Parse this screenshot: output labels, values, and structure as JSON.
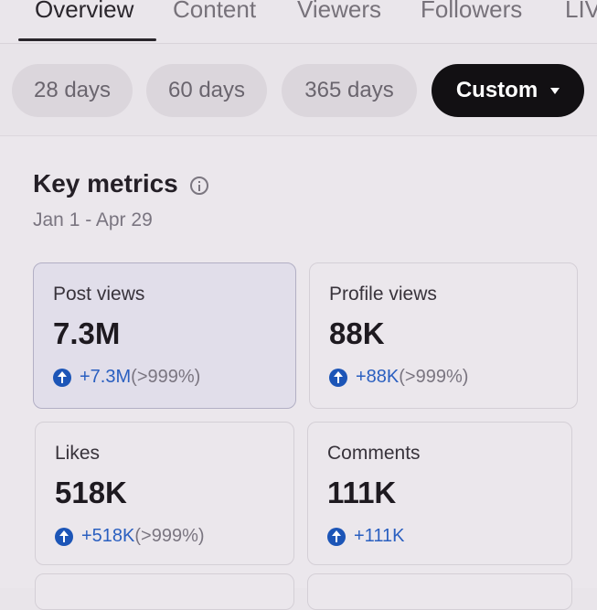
{
  "tabs": [
    {
      "label": "Overview",
      "active": true
    },
    {
      "label": "Content",
      "active": false
    },
    {
      "label": "Viewers",
      "active": false
    },
    {
      "label": "Followers",
      "active": false
    },
    {
      "label": "LIV",
      "active": false
    }
  ],
  "date_ranges": [
    {
      "label": "28 days",
      "selected": false
    },
    {
      "label": "60 days",
      "selected": false
    },
    {
      "label": "365 days",
      "selected": false
    },
    {
      "label": "Custom",
      "selected": true
    }
  ],
  "key_metrics": {
    "title": "Key metrics",
    "date_range": "Jan 1 - Apr 29",
    "cards": [
      {
        "label": "Post views",
        "value": "7.3M",
        "change": "+7.3M",
        "pct": "(>999%)",
        "selected": true
      },
      {
        "label": "Profile views",
        "value": "88K",
        "change": "+88K",
        "pct": "(>999%)",
        "selected": false
      },
      {
        "label": "Likes",
        "value": "518K",
        "change": "+518K",
        "pct": "(>999%)",
        "selected": false
      },
      {
        "label": "Comments",
        "value": "111K",
        "change": "+111K",
        "pct": "",
        "selected": false
      }
    ]
  },
  "icons": {
    "info": "info-icon",
    "trend": "arrow-up-circle-icon",
    "dropdown": "caret-down-icon"
  },
  "colors": {
    "selected_chip": "#121013",
    "increase_accent": "#1c55b7",
    "selected_card": "#e1deea"
  }
}
